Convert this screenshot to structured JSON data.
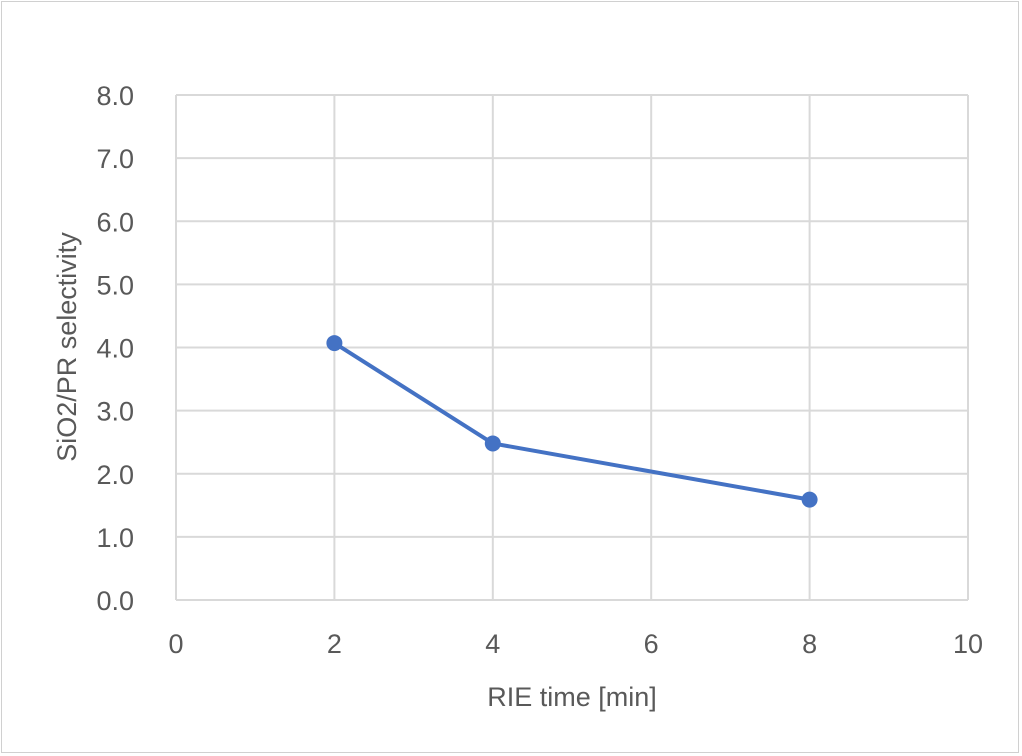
{
  "chart_data": {
    "type": "line",
    "title": "",
    "xlabel": "RIE time [min]",
    "ylabel": "SiO2/PR selectivity",
    "xlim": [
      0,
      10
    ],
    "ylim": [
      0,
      8
    ],
    "x_ticks": [
      0,
      2,
      4,
      6,
      8,
      10
    ],
    "y_ticks": [
      0,
      1,
      2,
      3,
      4,
      5,
      6,
      7,
      8
    ],
    "y_tick_labels": [
      "0.0",
      "1.0",
      "2.0",
      "3.0",
      "4.0",
      "5.0",
      "6.0",
      "7.0",
      "8.0"
    ],
    "x_tick_labels": [
      "0",
      "2",
      "4",
      "6",
      "8",
      "10"
    ],
    "grid": true,
    "legend": "none",
    "series": [
      {
        "x": [
          2,
          4,
          8
        ],
        "y": [
          4.07,
          2.48,
          1.59
        ],
        "color": "#4472c4",
        "marker": "circle"
      }
    ],
    "colors": {
      "line": "#4472c4",
      "grid": "#d9d9d9",
      "text": "#595959",
      "frame": "#d0d0d0"
    }
  }
}
